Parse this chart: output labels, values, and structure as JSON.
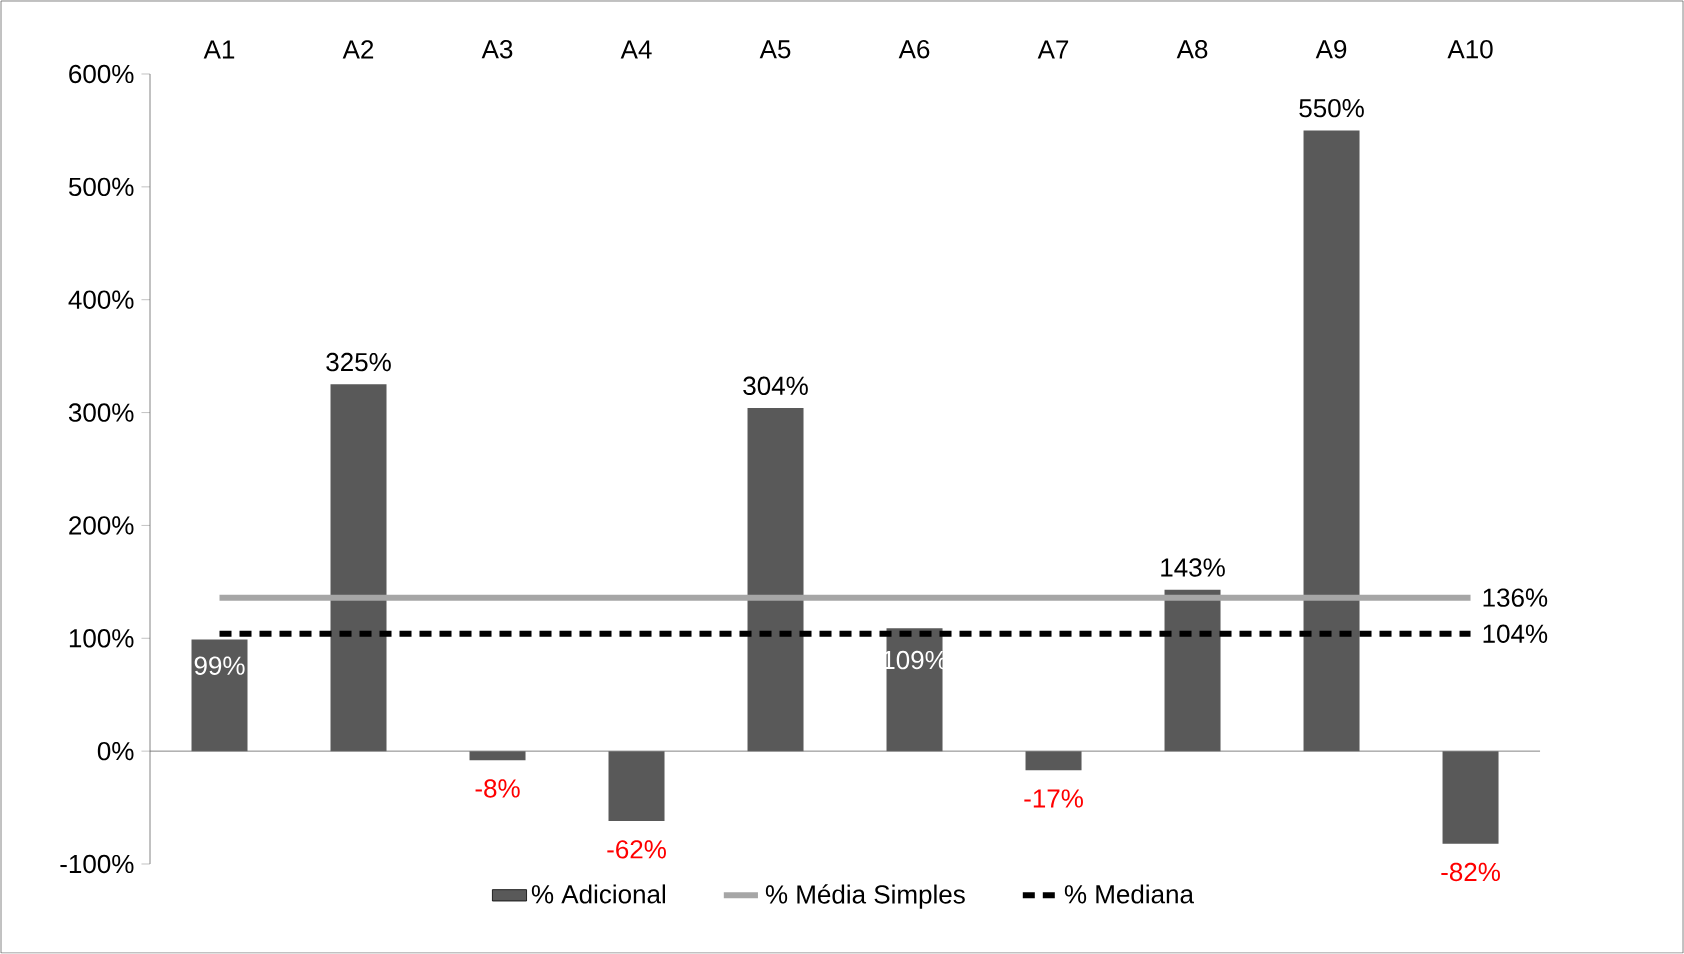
{
  "chart_data": {
    "type": "bar",
    "categories": [
      "A1",
      "A2",
      "A3",
      "A4",
      "A5",
      "A6",
      "A7",
      "A8",
      "A9",
      "A10"
    ],
    "series": [
      {
        "name": "% Adicional",
        "color": "#595959",
        "values": [
          99,
          325,
          -8,
          -62,
          304,
          109,
          -17,
          143,
          550,
          -82
        ],
        "value_labels": [
          "99%",
          "325%",
          "-8%",
          "-62%",
          "304%",
          "109%",
          "-17%",
          "143%",
          "550%",
          "-82%"
        ]
      },
      {
        "name": "% Média Simples",
        "type": "line",
        "color": "#a6a6a6",
        "values": [
          136,
          136,
          136,
          136,
          136,
          136,
          136,
          136,
          136,
          136
        ],
        "value_labels": [
          null,
          null,
          null,
          null,
          null,
          null,
          null,
          null,
          null,
          "136%"
        ]
      },
      {
        "name": "% Mediana",
        "type": "line",
        "color": "#000000",
        "line_style": "dashed",
        "values": [
          104,
          104,
          104,
          104,
          104,
          104,
          104,
          104,
          104,
          104
        ],
        "value_labels": [
          null,
          null,
          null,
          null,
          null,
          null,
          null,
          null,
          null,
          "104%"
        ]
      }
    ],
    "ylim": [
      -100,
      600
    ],
    "yticks": [
      {
        "value": -100,
        "label": "-100%"
      },
      {
        "value": 0,
        "label": "0%"
      },
      {
        "value": 100,
        "label": "100%"
      },
      {
        "value": 200,
        "label": "200%"
      },
      {
        "value": 300,
        "label": "300%"
      },
      {
        "value": 400,
        "label": "400%"
      },
      {
        "value": 500,
        "label": "500%"
      },
      {
        "value": 600,
        "label": "600%"
      }
    ],
    "legend": "bottom",
    "grid": false,
    "marker": "none"
  }
}
